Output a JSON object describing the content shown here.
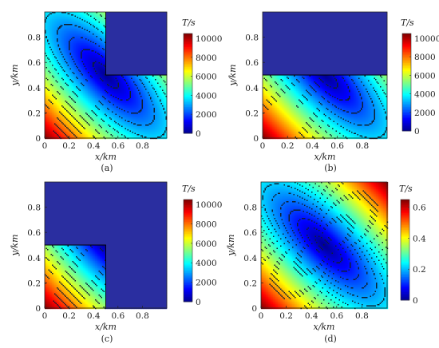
{
  "chart_data": [
    {
      "type": "heatmap",
      "caption": "(a)",
      "xlabel": "x/km",
      "ylabel": "y/km",
      "xlim": [
        0,
        1
      ],
      "ylim": [
        0,
        1
      ],
      "xticks": [
        "0",
        "0.2",
        "0.4",
        "0.6",
        "0.8"
      ],
      "yticks": [
        "0",
        "0.2",
        "0.4",
        "0.6",
        "0.8"
      ],
      "colorbar": {
        "title": "T/s",
        "min": 0,
        "max": 10500,
        "ticks": [
          "0",
          "2000",
          "4000",
          "6000",
          "8000",
          "10000"
        ]
      },
      "blocked_region": "x >= 0.5 and y >= 0.5",
      "source_point": [
        0.5,
        0.5
      ],
      "value_at_corner_0_0": 10500,
      "contour_interval": 700
    },
    {
      "type": "heatmap",
      "caption": "(b)",
      "xlabel": "x/km",
      "ylabel": "y/km",
      "xlim": [
        0,
        1
      ],
      "ylim": [
        0,
        1
      ],
      "xticks": [
        "0",
        "0.2",
        "0.4",
        "0.6",
        "0.8"
      ],
      "yticks": [
        "0",
        "0.2",
        "0.4",
        "0.6",
        "0.8"
      ],
      "colorbar": {
        "title": "T/s",
        "min": 0,
        "max": 10500,
        "ticks": [
          "0",
          "2000",
          "4000",
          "6000",
          "8000",
          "10000"
        ]
      },
      "blocked_region": "y >= 0.5",
      "source_point": [
        0.5,
        0.5
      ],
      "value_at_corner_0_0": 10500,
      "contour_interval": 700
    },
    {
      "type": "heatmap",
      "caption": "(c)",
      "xlabel": "x/km",
      "ylabel": "y/km",
      "xlim": [
        0,
        1
      ],
      "ylim": [
        0,
        1
      ],
      "xticks": [
        "0",
        "0.2",
        "0.4",
        "0.6",
        "0.8"
      ],
      "yticks": [
        "0",
        "0.2",
        "0.4",
        "0.6",
        "0.8"
      ],
      "colorbar": {
        "title": "T/s",
        "min": 0,
        "max": 10500,
        "ticks": [
          "0",
          "2000",
          "4000",
          "6000",
          "8000",
          "10000"
        ]
      },
      "blocked_region": "x >= 0.5 or y >= 0.5",
      "source_point": [
        0.5,
        0.5
      ],
      "value_at_corner_0_0": 10500,
      "contour_interval": 700
    },
    {
      "type": "heatmap",
      "caption": "(d)",
      "xlabel": "x/km",
      "ylabel": "y/km",
      "xlim": [
        0,
        1
      ],
      "ylim": [
        0,
        1
      ],
      "xticks": [
        "0",
        "0.2",
        "0.4",
        "0.6",
        "0.8"
      ],
      "yticks": [
        "0",
        "0.2",
        "0.4",
        "0.6",
        "0.8"
      ],
      "colorbar": {
        "title": "T/s",
        "min": 0,
        "max": 0.65,
        "ticks": [
          "0",
          "0.2",
          "0.4",
          "0.6"
        ]
      },
      "blocked_region": "none",
      "source_point": [
        0.5,
        0.5
      ],
      "value_at_corner_0_0": 0.65,
      "contour_interval": 0.03
    }
  ]
}
